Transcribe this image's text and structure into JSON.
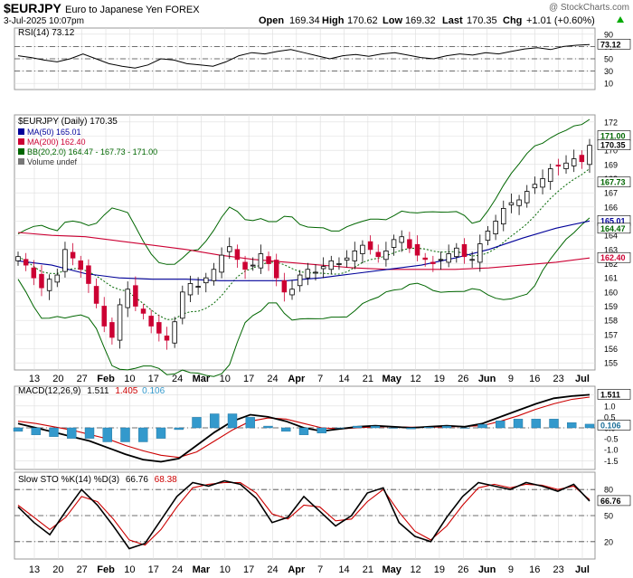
{
  "header": {
    "symbol": "$EURJPY",
    "name": "Euro to Japanese Yen FOREX",
    "watermark": "@ StockCharts.com",
    "date": "3-Jul-2025 10:07pm",
    "open_label": "Open",
    "open": "169.34",
    "high_label": "High",
    "high": "170.62",
    "low_label": "Low",
    "low": "169.32",
    "last_label": "Last",
    "last": "170.35",
    "chg_label": "Chg",
    "chg": "+1.01 (+0.60%)",
    "chg_arrow": "up-arrow-icon"
  },
  "colors": {
    "up": "#000000",
    "down": "#cc0033",
    "ma50": "#000099",
    "ma200": "#cc0033",
    "bb": "#006600",
    "macd_hist": "#3399cc",
    "signal": "#cc0000",
    "grid": "#dddddd"
  },
  "rsi_panel": {
    "legend": "RSI(14) 73.12",
    "current": "73.12",
    "ticks": [
      "90",
      "70",
      "50",
      "30",
      "10"
    ],
    "levels": [
      70,
      50,
      30
    ]
  },
  "price_panel": {
    "legend": {
      "title": "$EURJPY (Daily) 170.35",
      "ma50": "MA(50) 165.01",
      "ma200": "MA(200) 162.40",
      "bb": "BB(20,2.0) 164.47 - 167.73 - 171.00",
      "volume": "Volume undef"
    },
    "y_ticks": [
      "172",
      "171",
      "170",
      "169",
      "168",
      "167",
      "166",
      "165",
      "164",
      "163",
      "162",
      "161",
      "160",
      "159",
      "158",
      "157",
      "156",
      "155"
    ],
    "value_labels": [
      "171.00",
      "170.35",
      "167.73",
      "165.01",
      "164.47",
      "162.40"
    ]
  },
  "macd_panel": {
    "legend_prefix": "MACD(12,26,9)",
    "macd": "1.511",
    "signal": "1.405",
    "hist": "0.106",
    "ticks": [
      "1.5",
      "1.0",
      "0.5",
      "0.0",
      "-0.5",
      "-1.0",
      "-1.5"
    ],
    "value_labels": [
      "1.511",
      "0.106"
    ]
  },
  "sto_panel": {
    "legend_prefix": "Slow STO %K(14) %D(3)",
    "k": "66.76",
    "d": "68.38",
    "ticks": [
      "80",
      "50",
      "20"
    ],
    "value_labels": [
      "66.76"
    ]
  },
  "x_axis": {
    "labels": [
      "13",
      "20",
      "27",
      "Feb",
      "10",
      "17",
      "24",
      "Mar",
      "10",
      "17",
      "24",
      "Apr",
      "7",
      "14",
      "21",
      "May",
      "12",
      "19",
      "26",
      "Jun",
      "9",
      "16",
      "23",
      "Jul"
    ]
  },
  "chart_data": {
    "type": "candlestick",
    "date_range": [
      "2025-01-13",
      "2025-07-03"
    ],
    "ohlc_close_path": [
      162.5,
      161.9,
      161.0,
      160.3,
      160.9,
      161.2,
      163.0,
      162.4,
      161.6,
      160.6,
      159.2,
      157.6,
      156.8,
      159.1,
      160.2,
      159.0,
      158.5,
      157.6,
      157.1,
      156.6,
      157.9,
      160.0,
      160.6,
      160.4,
      161.0,
      161.6,
      162.6,
      163.2,
      162.3,
      161.6,
      161.9,
      162.7,
      162.0,
      161.0,
      160.0,
      160.2,
      161.2,
      161.6,
      161.4,
      161.8,
      162.2,
      162.0,
      162.4,
      162.9,
      163.3,
      163.0,
      162.5,
      162.9,
      163.7,
      163.9,
      163.1,
      162.6,
      162.3,
      162.0,
      162.3,
      162.7,
      163.1,
      162.5,
      162.3,
      163.4,
      164.3,
      165.0,
      165.9,
      166.3,
      166.5,
      167.1,
      167.6,
      168.0,
      168.7,
      168.9,
      169.1,
      169.4,
      169.2,
      170.35
    ],
    "price": {
      "last": 170.35,
      "open": 169.34,
      "high": 170.62,
      "low": 169.32,
      "period_high": 171.9,
      "period_low": 155.0,
      "ylim": [
        154.5,
        172.5
      ]
    },
    "ma50": {
      "last": 165.01,
      "path": [
        162.2,
        161.9,
        161.3,
        161.0,
        160.9,
        160.9,
        160.8,
        160.8,
        160.8,
        161.0,
        161.3,
        161.6,
        161.9,
        162.4,
        163.0,
        163.8,
        164.5,
        165.01
      ]
    },
    "ma200": {
      "last": 162.4,
      "path": [
        164.2,
        164.0,
        163.9,
        163.6,
        163.3,
        163.0,
        162.6,
        162.3,
        162.1,
        161.9,
        161.7,
        161.6,
        161.6,
        161.6,
        161.7,
        161.9,
        162.1,
        162.4
      ]
    },
    "bollinger": {
      "upper": 171.0,
      "middle": 167.73,
      "lower": 164.47
    },
    "rsi": {
      "last": 73.12,
      "ylim": [
        0,
        100
      ],
      "levels": [
        30,
        50,
        70
      ],
      "path": [
        55,
        52,
        48,
        45,
        50,
        58,
        50,
        42,
        38,
        35,
        40,
        50,
        48,
        42,
        40,
        38,
        45,
        55,
        60,
        58,
        62,
        65,
        60,
        55,
        50,
        55,
        57,
        54,
        58,
        60,
        56,
        52,
        50,
        55,
        58,
        56,
        60,
        58,
        62,
        66,
        68,
        65,
        70,
        72,
        73.12
      ]
    },
    "macd": {
      "macd_last": 1.511,
      "signal_last": 1.405,
      "hist_last": 0.106,
      "ylim": [
        -1.9,
        1.9
      ],
      "macd_path": [
        0.2,
        0.0,
        -0.2,
        -0.4,
        -0.6,
        -0.9,
        -1.2,
        -1.45,
        -1.55,
        -1.4,
        -0.8,
        -0.2,
        0.3,
        0.6,
        0.5,
        0.3,
        0.0,
        -0.15,
        -0.05,
        0.05,
        0.1,
        0.05,
        0.0,
        0.05,
        0.1,
        0.05,
        0.2,
        0.5,
        0.8,
        1.1,
        1.35,
        1.45,
        1.511
      ],
      "signal_path": [
        0.3,
        0.2,
        0.05,
        -0.1,
        -0.3,
        -0.5,
        -0.8,
        -1.05,
        -1.25,
        -1.35,
        -1.1,
        -0.6,
        -0.1,
        0.3,
        0.45,
        0.4,
        0.2,
        0.0,
        -0.05,
        0.0,
        0.05,
        0.05,
        0.03,
        0.03,
        0.05,
        0.06,
        0.1,
        0.3,
        0.55,
        0.85,
        1.1,
        1.3,
        1.405
      ]
    },
    "stochastic": {
      "k_last": 66.76,
      "d_last": 68.38,
      "ylim": [
        0,
        100
      ],
      "levels": [
        20,
        50,
        80
      ],
      "k_path": [
        60,
        42,
        28,
        55,
        80,
        62,
        38,
        12,
        18,
        45,
        72,
        88,
        84,
        90,
        86,
        70,
        42,
        48,
        72,
        55,
        38,
        50,
        76,
        82,
        42,
        26,
        20,
        48,
        72,
        88,
        84,
        80,
        88,
        84,
        78,
        86,
        66.76
      ],
      "d_path": [
        62,
        48,
        34,
        48,
        72,
        66,
        46,
        22,
        16,
        34,
        60,
        82,
        86,
        88,
        88,
        76,
        52,
        46,
        62,
        60,
        44,
        46,
        66,
        80,
        54,
        32,
        22,
        38,
        62,
        82,
        86,
        82,
        86,
        85,
        80,
        84,
        68.38
      ]
    }
  }
}
